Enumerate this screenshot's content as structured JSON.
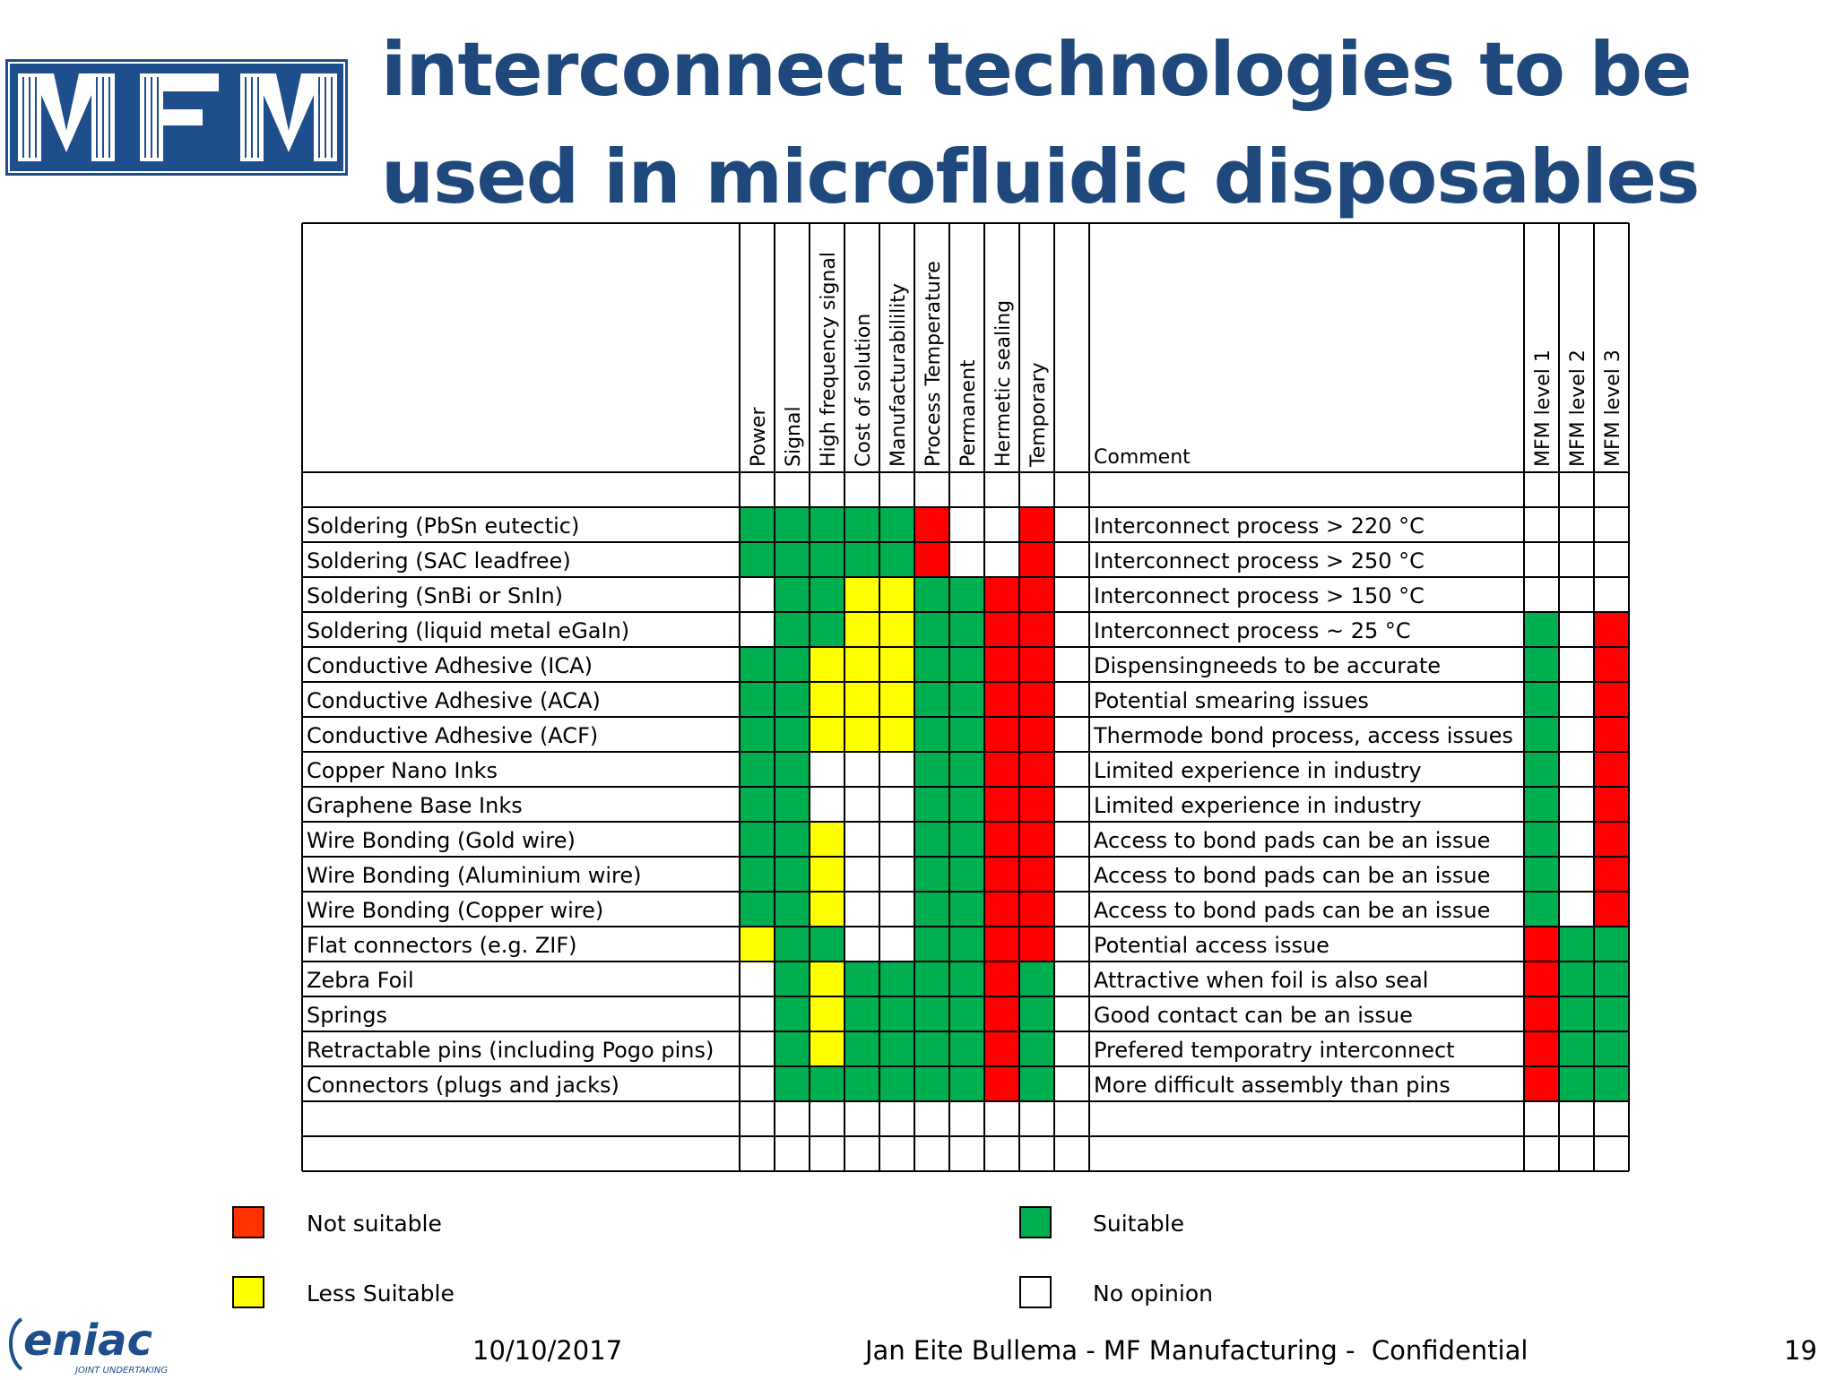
{
  "logo": {
    "text": "MFM",
    "name": "mfm-logo"
  },
  "title": "interconnect technologies to be used in microfluidic disposables",
  "table": {
    "columns": [
      "Power",
      "Signal",
      "High frequency signal",
      "Cost of solution",
      "Manufacturabilility",
      "Process Temperature",
      "Permanent",
      "Hermetic sealing",
      "Temporary",
      ""
    ],
    "comment_header": "Comment",
    "level_columns": [
      "MFM level 1",
      "MFM level 2",
      "MFM level 3"
    ],
    "rows": [
      {
        "label": "Soldering (PbSn eutectic)",
        "cells": "GGGGGRWWRW",
        "comment": "Interconnect process > 220 °C",
        "levels": "WWW"
      },
      {
        "label": "Soldering (SAC leadfree)",
        "cells": "GGGGGRWWRW",
        "comment": "Interconnect process > 250 °C",
        "levels": "WWW"
      },
      {
        "label": "Soldering (SnBi or SnIn)",
        "cells": "WGGYYGGRRW",
        "comment": "Interconnect process > 150 °C",
        "levels": "WWW"
      },
      {
        "label": "Soldering (liquid metal eGaIn)",
        "cells": "WGGYYGGRRW",
        "comment": "Interconnect process ~ 25 °C",
        "levels": "GWR"
      },
      {
        "label": "Conductive Adhesive (ICA)",
        "cells": "GGYYYGGRRW",
        "comment": "Dispensingneeds to be accurate",
        "levels": "GWR"
      },
      {
        "label": "Conductive Adhesive (ACA)",
        "cells": "GGYYYGGRRW",
        "comment": "Potential smearing issues",
        "levels": "GWR"
      },
      {
        "label": "Conductive Adhesive (ACF)",
        "cells": "GGYYYGGRRW",
        "comment": "Thermode bond process, access issues",
        "levels": "GWR"
      },
      {
        "label": "Copper Nano Inks",
        "cells": "GGWWWGGRRW",
        "comment": "Limited experience in industry",
        "levels": "GWR"
      },
      {
        "label": "Graphene Base Inks",
        "cells": "GGWWWGGRRW",
        "comment": "Limited experience in industry",
        "levels": "GWR"
      },
      {
        "label": "Wire Bonding (Gold wire)",
        "cells": "GGYWWGGRRW",
        "comment": "Access to bond pads can be an issue",
        "levels": "GWR"
      },
      {
        "label": "Wire Bonding (Aluminium wire)",
        "cells": "GGYWWGGRRW",
        "comment": "Access to bond pads can be an issue",
        "levels": "GWR"
      },
      {
        "label": "Wire Bonding (Copper wire)",
        "cells": "GGYWWGGRRW",
        "comment": "Access to bond pads can be an issue",
        "levels": "GWR"
      },
      {
        "label": "Flat connectors (e.g. ZIF)",
        "cells": "YGGWWGGRRW",
        "comment": "Potential access issue",
        "levels": "RGG"
      },
      {
        "label": "Zebra Foil",
        "cells": "WGYGGGGRGW",
        "comment": "Attractive when foil is also seal",
        "levels": "RGG"
      },
      {
        "label": "Springs",
        "cells": "WGYGGGGRGW",
        "comment": "Good contact can be an issue",
        "levels": "RGG"
      },
      {
        "label": "Retractable pins (including Pogo pins)",
        "cells": "WGYGGGGRGW",
        "comment": "Prefered temporatry interconnect",
        "levels": "RGG"
      },
      {
        "label": "Connectors (plugs and jacks)",
        "cells": "WGGGGGGRGW",
        "comment": "More difficult assembly than pins",
        "levels": "RGG"
      }
    ]
  },
  "status_colors": {
    "G": "#00b050",
    "Y": "#ffff00",
    "R": "#ff0000",
    "W": "#ffffff"
  },
  "legend": [
    {
      "color": "#ff3300",
      "label": "Not suitable"
    },
    {
      "color": "#ffff00",
      "label": "Less Suitable"
    },
    {
      "color": "#00b050",
      "label": "Suitable"
    },
    {
      "color": "#ffffff",
      "label": "No opinion"
    }
  ],
  "footer": {
    "logo_text": "eniac",
    "logo_subtext": "JOINT UNDERTAKING",
    "date": "10/10/2017",
    "center": "Jan Eite Bullema - MF Manufacturing -  Confidential",
    "page": "19"
  }
}
